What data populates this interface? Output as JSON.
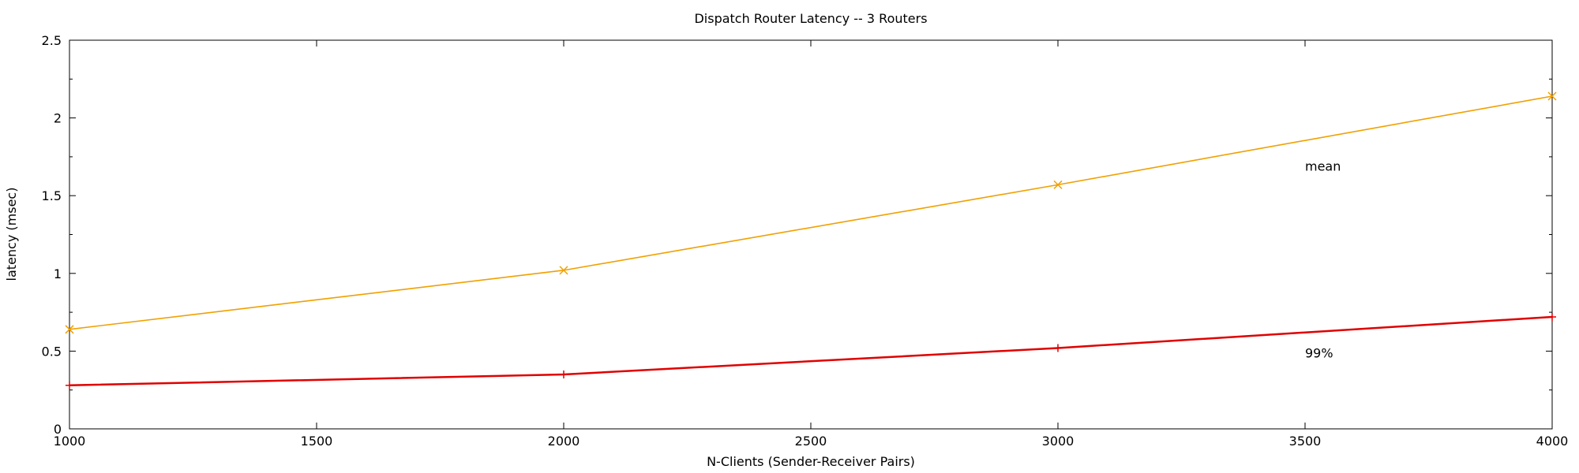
{
  "chart_data": {
    "type": "line",
    "title": "Dispatch Router Latency -- 3 Routers",
    "xlabel": "N-Clients  (Sender-Receiver Pairs)",
    "ylabel": "latency (msec)",
    "xlim": [
      1000,
      4000
    ],
    "ylim": [
      0,
      2.5
    ],
    "xticks": [
      1000,
      1500,
      2000,
      2500,
      3000,
      3500,
      4000
    ],
    "yticks": [
      0,
      0.5,
      1,
      1.5,
      2,
      2.5
    ],
    "ytick_labels": [
      "0",
      "0.5",
      "1",
      "1.5",
      "2",
      "2.5"
    ],
    "grid": false,
    "legend": "none",
    "series": [
      {
        "name": "mean",
        "color": "#f0a000",
        "marker": "x",
        "x": [
          1000,
          2000,
          3000,
          4000
        ],
        "y": [
          0.64,
          1.02,
          1.57,
          2.14
        ]
      },
      {
        "name": "99%",
        "color": "#e00000",
        "marker": "+",
        "x": [
          1000,
          2000,
          3000,
          4000
        ],
        "y": [
          0.28,
          0.35,
          0.52,
          0.72
        ]
      }
    ],
    "annotations": [
      {
        "text": "mean",
        "x": 3500,
        "y": 1.69
      },
      {
        "text": "99%",
        "x": 3500,
        "y": 0.49
      }
    ]
  }
}
